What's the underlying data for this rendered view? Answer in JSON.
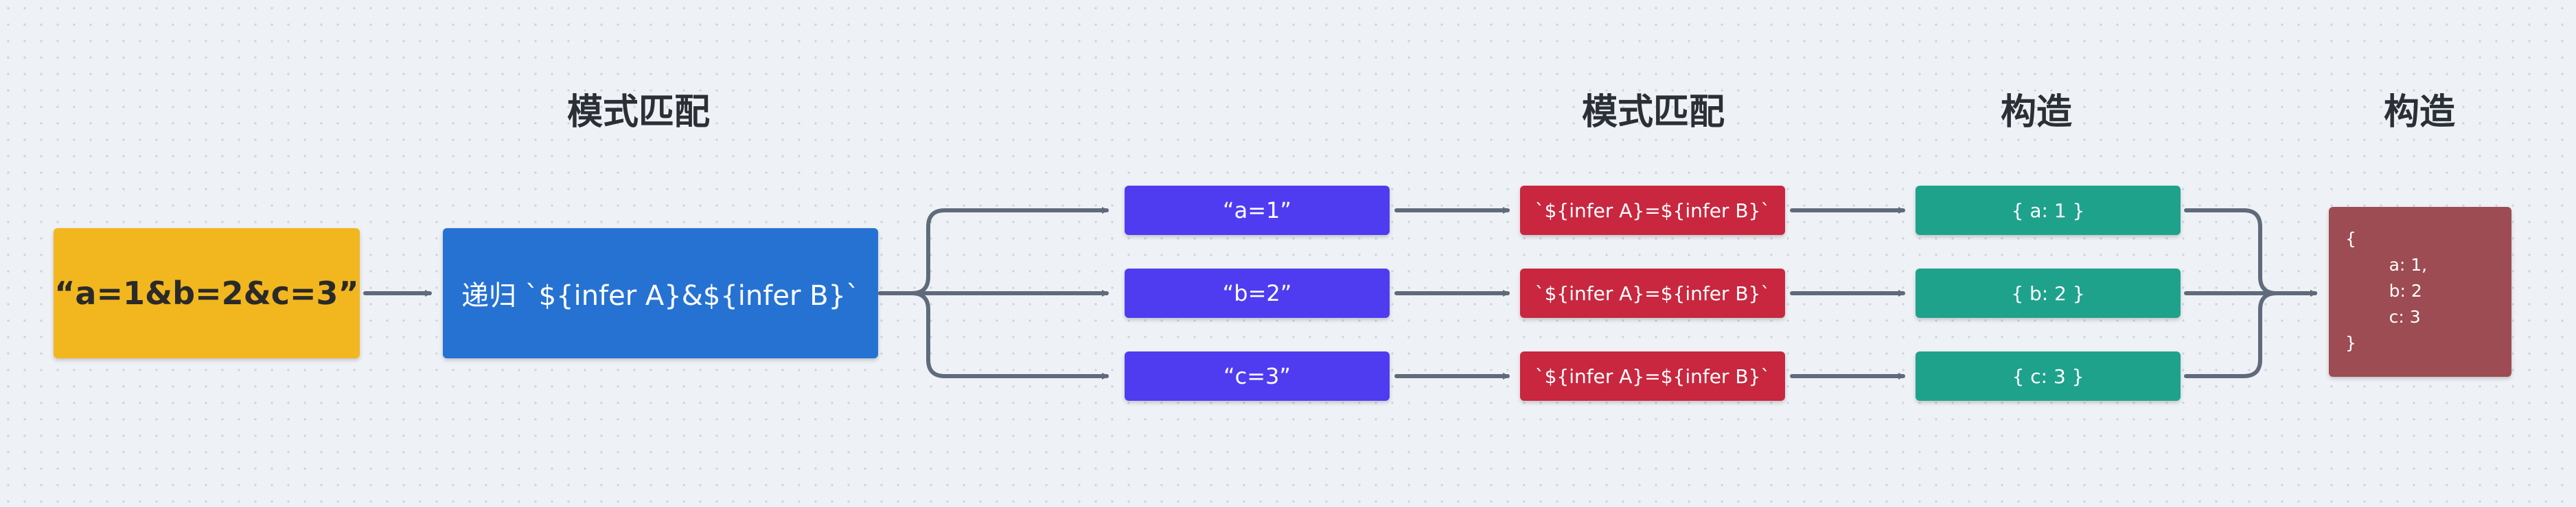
{
  "labels": {
    "match1": "模式匹配",
    "match2": "模式匹配",
    "construct1": "构造",
    "construct2": "构造"
  },
  "input": {
    "text": "“a=1&b=2&c=3”"
  },
  "recurse": {
    "text": "递归 `${infer A}&${infer B}`"
  },
  "rows": [
    {
      "pair": "“a=1”",
      "pattern": "`${infer A}=${infer B}`",
      "object": "{ a: 1 }"
    },
    {
      "pair": "“b=2”",
      "pattern": "`${infer A}=${infer B}`",
      "object": "{ b: 2 }"
    },
    {
      "pair": "“c=3”",
      "pattern": "`${infer A}=${infer B}`",
      "object": "{ c: 3 }"
    }
  ],
  "result": {
    "lines": [
      "{",
      "        a: 1,",
      "        b: 2",
      "        c: 3",
      "}"
    ]
  },
  "colors": {
    "input": "#f2b71f",
    "recurse": "#2672d3",
    "pair": "#4f3cf0",
    "pattern": "#c8273f",
    "object": "#1ea28c",
    "result": "#9c4c52",
    "arrow": "#5f6b7a"
  }
}
